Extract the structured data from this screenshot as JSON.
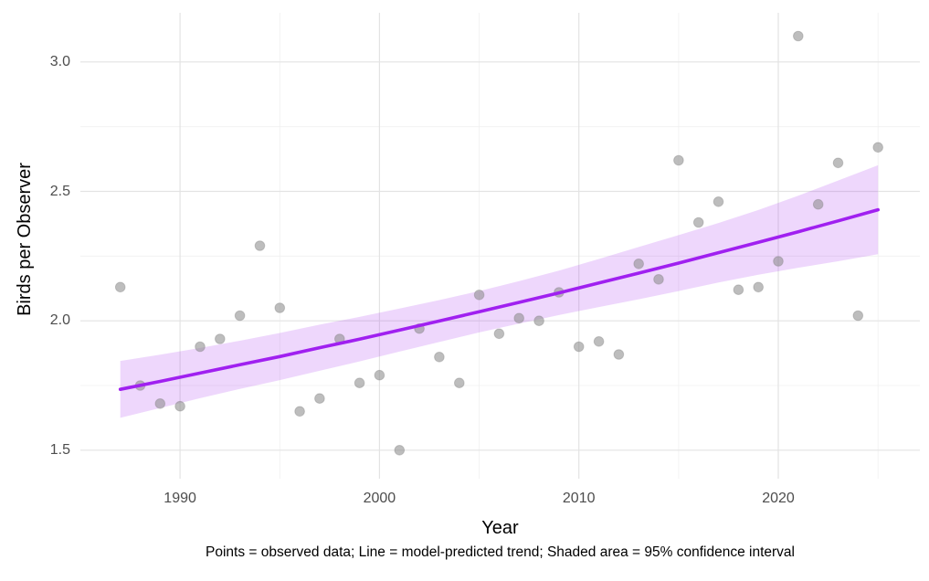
{
  "chart_data": {
    "type": "scatter",
    "title": "",
    "xlabel": "Year",
    "ylabel": "Birds per Observer",
    "caption": "Points = observed data; Line = model-predicted trend; Shaded area = 95% confidence interval",
    "grid": true,
    "legend": "none",
    "xlim": [
      1985,
      2027.1
    ],
    "ylim": [
      1.39,
      3.19
    ],
    "x_tick_values": [
      1990,
      2000,
      2010,
      2020
    ],
    "x_tick_labels": [
      "1990",
      "2000",
      "2010",
      "2020"
    ],
    "x_minor_gridlines": [
      1995,
      2005,
      2015,
      2025
    ],
    "y_tick_values": [
      1.5,
      2.0,
      2.5,
      3.0
    ],
    "y_tick_labels": [
      "1.5",
      "2.0",
      "2.5",
      "3.0"
    ],
    "y_minor_gridlines": [
      1.75,
      2.25,
      2.75
    ],
    "points": {
      "name": "observed data",
      "years": [
        1987,
        1988,
        1989,
        1990,
        1991,
        1992,
        1993,
        1994,
        1995,
        1996,
        1997,
        1998,
        1999,
        2000,
        2001,
        2002,
        2003,
        2004,
        2005,
        2006,
        2007,
        2008,
        2009,
        2010,
        2011,
        2012,
        2013,
        2014,
        2015,
        2016,
        2017,
        2018,
        2019,
        2020,
        2021,
        2022,
        2023,
        2024,
        2025
      ],
      "values": [
        2.13,
        1.75,
        1.68,
        1.67,
        1.9,
        1.93,
        2.02,
        2.29,
        2.05,
        1.65,
        1.7,
        1.93,
        1.76,
        1.79,
        1.5,
        1.97,
        1.86,
        1.76,
        2.1,
        1.95,
        2.01,
        2.0,
        2.11,
        1.9,
        1.92,
        1.87,
        2.22,
        2.16,
        2.62,
        2.38,
        2.46,
        2.12,
        2.13,
        2.23,
        3.1,
        2.45,
        2.61,
        2.02,
        2.67
      ]
    },
    "trend": {
      "name": "model-predicted trend with 95% confidence interval",
      "points": [
        {
          "year": 1987,
          "fit": 1.735,
          "lower": 1.625,
          "upper": 1.845
        },
        {
          "year": 1989,
          "fit": 1.766,
          "lower": 1.663,
          "upper": 1.869
        },
        {
          "year": 1991,
          "fit": 1.798,
          "lower": 1.701,
          "upper": 1.895
        },
        {
          "year": 1993,
          "fit": 1.83,
          "lower": 1.737,
          "upper": 1.923
        },
        {
          "year": 1995,
          "fit": 1.862,
          "lower": 1.771,
          "upper": 1.953
        },
        {
          "year": 1997,
          "fit": 1.896,
          "lower": 1.807,
          "upper": 1.985
        },
        {
          "year": 1999,
          "fit": 1.929,
          "lower": 1.843,
          "upper": 2.015
        },
        {
          "year": 2001,
          "fit": 1.964,
          "lower": 1.881,
          "upper": 2.047
        },
        {
          "year": 2003,
          "fit": 1.999,
          "lower": 1.918,
          "upper": 2.08
        },
        {
          "year": 2005,
          "fit": 2.035,
          "lower": 1.955,
          "upper": 2.115
        },
        {
          "year": 2007,
          "fit": 2.071,
          "lower": 1.989,
          "upper": 2.153
        },
        {
          "year": 2009,
          "fit": 2.108,
          "lower": 2.022,
          "upper": 2.194
        },
        {
          "year": 2011,
          "fit": 2.146,
          "lower": 2.053,
          "upper": 2.239
        },
        {
          "year": 2013,
          "fit": 2.184,
          "lower": 2.083,
          "upper": 2.285
        },
        {
          "year": 2015,
          "fit": 2.223,
          "lower": 2.115,
          "upper": 2.331
        },
        {
          "year": 2017,
          "fit": 2.263,
          "lower": 2.148,
          "upper": 2.378
        },
        {
          "year": 2019,
          "fit": 2.303,
          "lower": 2.178,
          "upper": 2.428
        },
        {
          "year": 2021,
          "fit": 2.344,
          "lower": 2.205,
          "upper": 2.483
        },
        {
          "year": 2023,
          "fit": 2.386,
          "lower": 2.23,
          "upper": 2.542
        },
        {
          "year": 2025,
          "fit": 2.429,
          "lower": 2.257,
          "upper": 2.601
        }
      ]
    },
    "colors": {
      "background": "#ffffff",
      "grid_major": "#e3e3e3",
      "grid_minor": "#f0f0f0",
      "point": "#8e8e8e",
      "point_edge": "#7a7a7a",
      "line": "#a020f0",
      "band": "#a020f0",
      "band_opacity": 0.18,
      "tick_text": "#4d4d4d",
      "title_text": "#000000"
    }
  }
}
